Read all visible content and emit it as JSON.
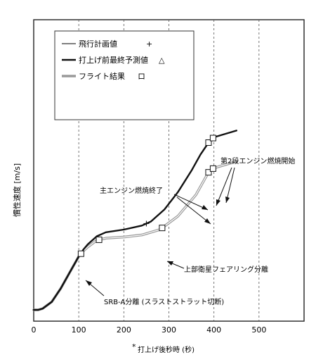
{
  "chart_data": {
    "type": "line",
    "title": "",
    "xlabel": "打上げ後秒時 (秒)",
    "xlabel_prefix": "*",
    "ylabel": "慣性速度 [m/s]",
    "xlim": [
      0,
      600
    ],
    "ylim": [
      0,
      10
    ],
    "xticks": [
      0,
      100,
      200,
      300,
      400,
      500
    ],
    "grid_x": true,
    "grid_y": false,
    "legend_position": "top-left",
    "series": [
      {
        "name": "飛行計画値",
        "marker_label": "+",
        "color": "#333333",
        "points": [
          [
            0,
            0.0
          ],
          [
            10,
            0.0
          ],
          [
            20,
            0.05
          ],
          [
            40,
            0.3
          ],
          [
            60,
            0.8
          ],
          [
            80,
            1.4
          ],
          [
            100,
            2.0
          ],
          [
            110,
            2.25
          ],
          [
            120,
            2.45
          ],
          [
            140,
            2.75
          ],
          [
            160,
            2.9
          ],
          [
            200,
            3.0
          ],
          [
            240,
            3.15
          ],
          [
            260,
            3.3
          ],
          [
            290,
            3.75
          ],
          [
            320,
            4.4
          ],
          [
            350,
            5.2
          ],
          [
            370,
            5.8
          ],
          [
            390,
            6.3
          ],
          [
            400,
            6.45
          ],
          [
            450,
            6.7
          ]
        ]
      },
      {
        "name": "打上げ前最終予測値",
        "marker_label": "△",
        "color": "#111111",
        "points": [
          [
            0,
            0.0
          ],
          [
            10,
            0.0
          ],
          [
            20,
            0.05
          ],
          [
            40,
            0.3
          ],
          [
            60,
            0.8
          ],
          [
            80,
            1.4
          ],
          [
            100,
            2.0
          ],
          [
            110,
            2.25
          ],
          [
            120,
            2.45
          ],
          [
            140,
            2.75
          ],
          [
            160,
            2.9
          ],
          [
            200,
            3.0
          ],
          [
            240,
            3.15
          ],
          [
            260,
            3.3
          ],
          [
            290,
            3.75
          ],
          [
            320,
            4.4
          ],
          [
            350,
            5.2
          ],
          [
            370,
            5.8
          ],
          [
            390,
            6.3
          ],
          [
            400,
            6.45
          ],
          [
            450,
            6.7
          ]
        ]
      },
      {
        "name": "フライト結果",
        "marker_label": "ロ",
        "color": "#9a9a9a",
        "points": [
          [
            0,
            0.0
          ],
          [
            10,
            0.0
          ],
          [
            20,
            0.05
          ],
          [
            40,
            0.3
          ],
          [
            60,
            0.8
          ],
          [
            80,
            1.4
          ],
          [
            100,
            2.0
          ],
          [
            110,
            2.2
          ],
          [
            120,
            2.35
          ],
          [
            140,
            2.6
          ],
          [
            160,
            2.68
          ],
          [
            200,
            2.72
          ],
          [
            240,
            2.8
          ],
          [
            280,
            3.0
          ],
          [
            320,
            3.5
          ],
          [
            360,
            4.3
          ],
          [
            380,
            4.9
          ],
          [
            390,
            5.2
          ],
          [
            400,
            5.3
          ],
          [
            450,
            5.55
          ]
        ]
      }
    ],
    "annotations": [
      {
        "label": "SRB-A分離 (スラストストラット切断)",
        "x": 105,
        "y": 2.1
      },
      {
        "label": "上部衛星フェアリング分離",
        "x": 285,
        "y": 3.05
      },
      {
        "label": "主エンジン燃焼終了",
        "x": 390,
        "y": 5.2
      },
      {
        "label": "第2段エンジン燃焼開始",
        "x": 400,
        "y": 6.4
      }
    ]
  }
}
